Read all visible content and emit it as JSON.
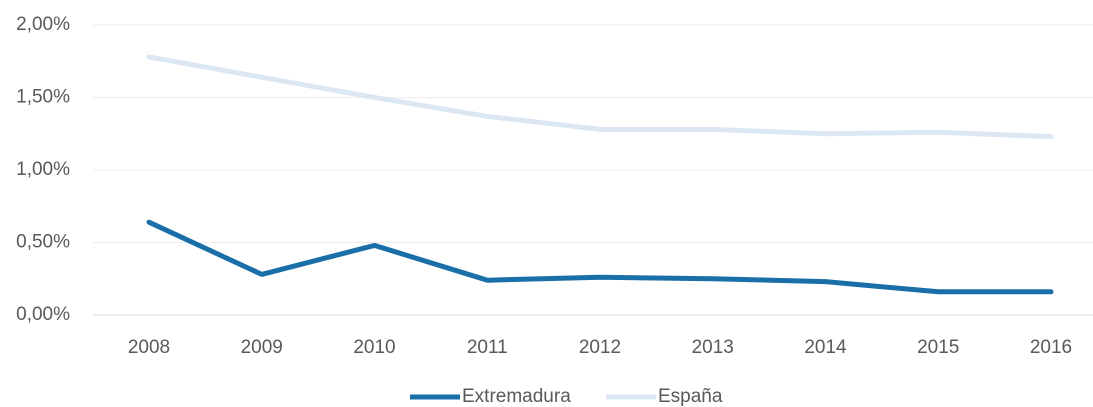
{
  "chart_data": {
    "type": "line",
    "categories": [
      "2008",
      "2009",
      "2010",
      "2011",
      "2012",
      "2013",
      "2014",
      "2015",
      "2016"
    ],
    "series": [
      {
        "name": "Extremadura",
        "color": "#1b6fa9",
        "values": [
          0.64,
          0.28,
          0.48,
          0.24,
          0.26,
          0.25,
          0.23,
          0.16,
          0.16
        ]
      },
      {
        "name": "España",
        "color": "#dce7f3",
        "values": [
          1.78,
          1.64,
          1.5,
          1.37,
          1.28,
          1.28,
          1.25,
          1.26,
          1.23
        ]
      }
    ],
    "ylim": [
      0,
      2
    ],
    "yticks": [
      {
        "value": 0,
        "label": "0,00%"
      },
      {
        "value": 0.5,
        "label": "0,50%"
      },
      {
        "value": 1,
        "label": "1,00%"
      },
      {
        "value": 1.5,
        "label": "1,50%"
      },
      {
        "value": 2,
        "label": "2,00%"
      }
    ],
    "grid": true,
    "legend": "bottom"
  }
}
